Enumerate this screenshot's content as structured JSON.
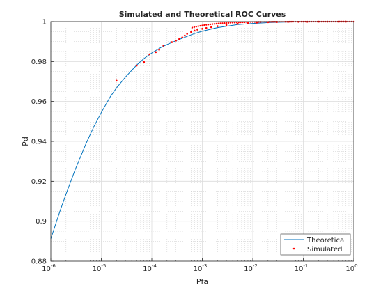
{
  "chart_data": {
    "type": "line",
    "title": "Simulated and Theoretical ROC Curves",
    "xlabel": "Pfa",
    "ylabel": "Pd",
    "xscale": "log",
    "xlim": [
      1e-06,
      1
    ],
    "ylim": [
      0.88,
      1
    ],
    "x_ticks": [
      {
        "base": "10",
        "exp": "-6"
      },
      {
        "base": "10",
        "exp": "-5"
      },
      {
        "base": "10",
        "exp": "-4"
      },
      {
        "base": "10",
        "exp": "-3"
      },
      {
        "base": "10",
        "exp": "-2"
      },
      {
        "base": "10",
        "exp": "-1"
      },
      {
        "base": "10",
        "exp": "0"
      }
    ],
    "y_ticks": [
      "0.88",
      "0.9",
      "0.92",
      "0.94",
      "0.96",
      "0.98",
      "1"
    ],
    "grid": true,
    "minor_grid": true,
    "legend_position": "bottom-right",
    "series": [
      {
        "name": "Theoretical",
        "style": "line",
        "color": "#0072BD",
        "x": [
          1e-06,
          1.5e-06,
          2e-06,
          3e-06,
          5e-06,
          7e-06,
          1e-05,
          1.5e-05,
          2e-05,
          3e-05,
          5e-05,
          7e-05,
          0.0001,
          0.00015,
          0.0002,
          0.0003,
          0.0005,
          0.0007,
          0.001,
          0.002,
          0.005,
          0.01,
          0.02,
          0.05,
          0.1,
          0.2,
          0.5,
          1
        ],
        "y": [
          0.8912,
          0.9047,
          0.9136,
          0.9255,
          0.939,
          0.947,
          0.9545,
          0.9623,
          0.9668,
          0.9722,
          0.9782,
          0.9815,
          0.9843,
          0.987,
          0.9885,
          0.9904,
          0.9926,
          0.994,
          0.9952,
          0.997,
          0.9985,
          0.9991,
          0.9995,
          0.9998,
          0.99992,
          0.99996,
          0.99999,
          1.0
        ]
      },
      {
        "name": "Simulated",
        "style": "markers",
        "color": "#FF0000",
        "x": [
          2e-05,
          5e-05,
          7e-05,
          9e-05,
          0.00012,
          0.00014,
          0.00017,
          0.00025,
          0.0003,
          0.00035,
          0.0004,
          0.00045,
          0.0005,
          0.0006,
          0.0007,
          0.0008,
          0.001,
          0.0012,
          0.0015,
          0.002,
          0.003,
          0.005,
          0.008,
          0.012,
          0.02,
          0.03,
          0.05,
          0.08,
          0.12,
          0.2,
          0.3,
          0.5,
          0.7,
          1
        ],
        "y": [
          0.9704,
          0.978,
          0.9797,
          0.9836,
          0.9847,
          0.9859,
          0.988,
          0.9897,
          0.9905,
          0.9913,
          0.9921,
          0.993,
          0.9939,
          0.9948,
          0.9955,
          0.996,
          0.9964,
          0.9968,
          0.9972,
          0.9977,
          0.9983,
          0.9989,
          0.9992,
          0.9995,
          0.9997,
          0.9998,
          0.99985,
          0.9999,
          0.99993,
          0.99996,
          0.99998,
          0.99999,
          1.0,
          1.0
        ]
      }
    ]
  }
}
